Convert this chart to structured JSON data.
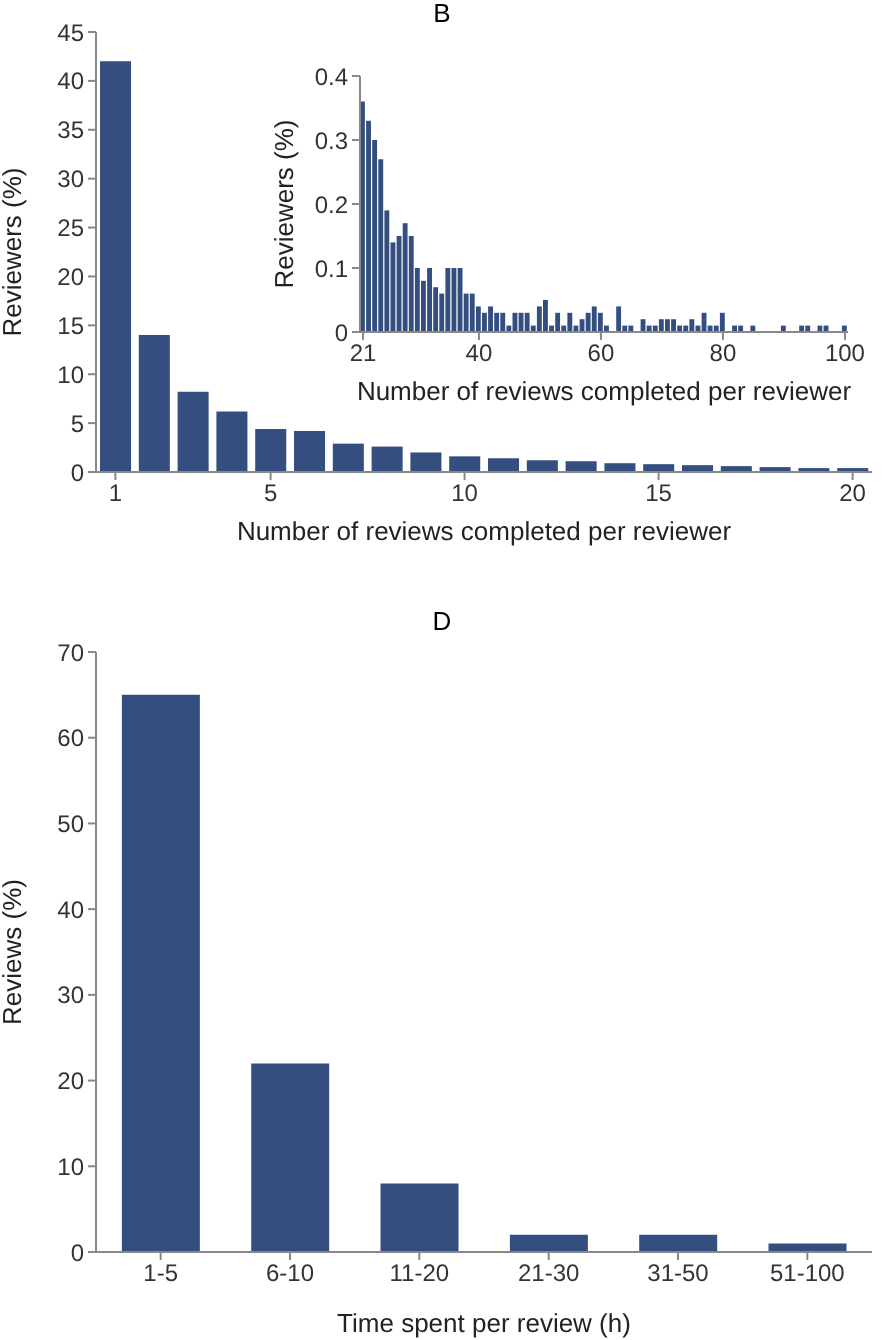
{
  "chart_data": [
    {
      "type": "bar",
      "title": "B",
      "xlabel": "Number of reviews completed per reviewer",
      "ylabel": "Reviewers (%)",
      "color": "#344e7f",
      "x": [
        1,
        2,
        3,
        4,
        5,
        6,
        7,
        8,
        9,
        10,
        11,
        12,
        13,
        14,
        15,
        16,
        17,
        18,
        19,
        20
      ],
      "values": [
        42,
        14,
        8.2,
        6.2,
        4.4,
        4.2,
        2.9,
        2.6,
        2.0,
        1.6,
        1.4,
        1.2,
        1.1,
        0.9,
        0.8,
        0.7,
        0.6,
        0.5,
        0.4,
        0.4
      ],
      "xlim": [
        0.5,
        20.5
      ],
      "xticks": [
        1,
        5,
        10,
        15,
        20
      ],
      "ylim": [
        0,
        45
      ],
      "yticks": [
        0,
        5,
        10,
        15,
        20,
        25,
        30,
        35,
        40,
        45
      ],
      "grid": false,
      "legend": false
    },
    {
      "type": "bar",
      "xlabel": "Number of reviews completed per reviewer",
      "ylabel": "Reviewers (%)",
      "color": "#344e7f",
      "x": [
        21,
        22,
        23,
        24,
        25,
        26,
        27,
        28,
        29,
        30,
        31,
        32,
        33,
        34,
        35,
        36,
        37,
        38,
        39,
        40,
        41,
        42,
        43,
        44,
        45,
        46,
        47,
        48,
        49,
        50,
        51,
        52,
        53,
        54,
        55,
        56,
        57,
        58,
        59,
        60,
        61,
        62,
        63,
        64,
        65,
        66,
        67,
        68,
        69,
        70,
        71,
        72,
        73,
        74,
        75,
        76,
        77,
        78,
        79,
        80,
        81,
        82,
        83,
        84,
        85,
        86,
        87,
        88,
        89,
        90,
        91,
        92,
        93,
        94,
        95,
        96,
        97,
        98,
        99,
        100
      ],
      "values": [
        0.36,
        0.33,
        0.3,
        0.27,
        0.19,
        0.14,
        0.15,
        0.17,
        0.15,
        0.1,
        0.08,
        0.1,
        0.07,
        0.06,
        0.1,
        0.1,
        0.1,
        0.06,
        0.06,
        0.04,
        0.03,
        0.04,
        0.03,
        0.03,
        0.01,
        0.03,
        0.03,
        0.03,
        0.01,
        0.04,
        0.05,
        0.01,
        0.03,
        0.01,
        0.03,
        0.01,
        0.02,
        0.03,
        0.04,
        0.03,
        0.01,
        null,
        0.04,
        0.01,
        0.01,
        null,
        0.02,
        0.01,
        0.01,
        0.02,
        0.02,
        0.02,
        0.01,
        0.01,
        0.02,
        0.01,
        0.03,
        0.01,
        0.01,
        0.03,
        null,
        0.01,
        0.01,
        null,
        0.01,
        null,
        null,
        null,
        null,
        0.01,
        null,
        null,
        0.01,
        0.01,
        null,
        0.01,
        0.01,
        null,
        null,
        0.01
      ],
      "xlim": [
        20.5,
        100.5
      ],
      "xticks": [
        21,
        40,
        60,
        80,
        100
      ],
      "ylim": [
        0,
        0.4
      ],
      "yticks": [
        0,
        0.1,
        0.2,
        0.3,
        0.4
      ],
      "grid": false,
      "legend": false
    },
    {
      "type": "bar",
      "title": "D",
      "xlabel": "Time spent per review (h)",
      "ylabel": "Reviews (%)",
      "color": "#344e7f",
      "categories": [
        "1-5",
        "6-10",
        "11-20",
        "21-30",
        "31-50",
        "51-100"
      ],
      "values": [
        65,
        22,
        8,
        2,
        2,
        1
      ],
      "ylim": [
        0,
        70
      ],
      "yticks": [
        0,
        10,
        20,
        30,
        40,
        50,
        60,
        70
      ],
      "grid": false,
      "legend": false
    }
  ]
}
